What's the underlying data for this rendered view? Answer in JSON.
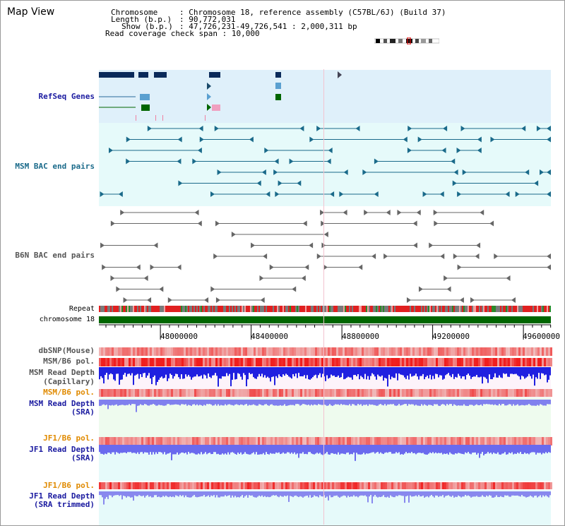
{
  "title": "Map View",
  "info": {
    "chromosome_key": "Chromosome",
    "chromosome_value": "Chromosome 18, reference assembly (C57BL/6J) (Build 37)",
    "length_key": "Length (b.p.)",
    "length_value": "90,772,031",
    "show_key": "Show (b.p.)",
    "show_value": "47,726,231-49,726,541 : 2,000,311 bp",
    "span_key": "Read coverage check span",
    "span_value": "10,000"
  },
  "colors": {
    "refseq_label": "#1a1aa0",
    "msm_bac_label": "#1a6a8a",
    "b6n_bac_label": "#555555",
    "pol_label_orange": "#e08a00",
    "depth_label": "#1a1aa0",
    "chromosome_bar": "#006600",
    "refseq_bg": "#dff0fa",
    "bac_bg": "#e6fafa",
    "depth_blue": "#2020e0",
    "depth_light": "#8080ee"
  },
  "tracks": {
    "refseq": "RefSeq Genes",
    "msm_bac": "MSM BAC end pairs",
    "b6n_bac": "B6N BAC end pairs",
    "repeat": "Repeat",
    "chromosome": "chromosome 18",
    "dbsnp": "dbSNP(Mouse)",
    "msm_b6_pol": "MSM/B6 pol.",
    "msm_read_depth_cap_1": "MSM Read Depth",
    "msm_read_depth_cap_2": "(Capillary)",
    "msm_b6_pol_2": "MSM/B6 pol.",
    "msm_read_depth_sra_1": "MSM Read Depth",
    "msm_read_depth_sra_2": "(SRA)",
    "jf1_b6_pol": "JF1/B6 pol.",
    "jf1_read_depth_sra_1": "JF1 Read Depth",
    "jf1_read_depth_sra_2": "(SRA)",
    "jf1_b6_pol_2": "JF1/B6 pol.",
    "jf1_read_depth_trim_1": "JF1 Read Depth",
    "jf1_read_depth_trim_2": "(SRA trimmed)"
  },
  "axis": {
    "ticks": [
      "48000000",
      "48400000",
      "48800000",
      "49200000",
      "49600000"
    ]
  }
}
